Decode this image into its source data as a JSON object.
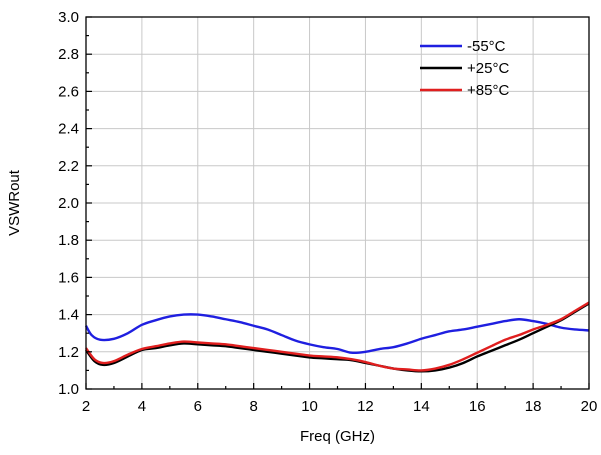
{
  "chart_data": {
    "type": "line",
    "xlabel": "Freq (GHz)",
    "ylabel": "VSWRout",
    "xlim": [
      2,
      20
    ],
    "ylim": [
      1.0,
      3.0
    ],
    "xticks": [
      "2",
      "4",
      "6",
      "8",
      "10",
      "12",
      "14",
      "16",
      "18",
      "20"
    ],
    "yticks": [
      "1.0",
      "1.2",
      "1.4",
      "1.6",
      "1.8",
      "2.0",
      "2.2",
      "2.4",
      "2.6",
      "2.8",
      "3.0"
    ],
    "grid": true,
    "legend_position": "top-right",
    "series": [
      {
        "name": "-55°C",
        "color": "#1f1fe0",
        "x": [
          2.0,
          2.2,
          2.5,
          3.0,
          3.5,
          4.0,
          4.5,
          5.0,
          5.5,
          6.0,
          6.5,
          7.0,
          7.5,
          8.0,
          8.5,
          9.0,
          9.5,
          10.0,
          10.5,
          11.0,
          11.5,
          12.0,
          12.5,
          13.0,
          13.5,
          14.0,
          14.5,
          15.0,
          15.5,
          16.0,
          16.5,
          17.0,
          17.5,
          18.0,
          18.5,
          19.0,
          19.5,
          20.0
        ],
        "y": [
          1.34,
          1.29,
          1.265,
          1.27,
          1.3,
          1.345,
          1.37,
          1.39,
          1.4,
          1.4,
          1.39,
          1.375,
          1.36,
          1.34,
          1.32,
          1.29,
          1.26,
          1.24,
          1.225,
          1.215,
          1.195,
          1.2,
          1.215,
          1.225,
          1.245,
          1.27,
          1.29,
          1.31,
          1.32,
          1.335,
          1.35,
          1.365,
          1.375,
          1.365,
          1.35,
          1.33,
          1.32,
          1.315
        ]
      },
      {
        "name": "+25°C",
        "color": "#000000",
        "x": [
          2.0,
          2.3,
          2.6,
          3.0,
          3.5,
          4.0,
          4.5,
          5.0,
          5.5,
          6.0,
          6.5,
          7.0,
          7.5,
          8.0,
          8.5,
          9.0,
          9.5,
          10.0,
          10.5,
          11.0,
          11.5,
          12.0,
          12.5,
          13.0,
          13.5,
          14.0,
          14.5,
          15.0,
          15.5,
          16.0,
          16.5,
          17.0,
          17.5,
          18.0,
          18.5,
          19.0,
          19.5,
          20.0
        ],
        "y": [
          1.21,
          1.15,
          1.13,
          1.14,
          1.175,
          1.21,
          1.22,
          1.235,
          1.245,
          1.24,
          1.235,
          1.23,
          1.22,
          1.21,
          1.2,
          1.19,
          1.18,
          1.17,
          1.165,
          1.16,
          1.155,
          1.14,
          1.125,
          1.11,
          1.1,
          1.095,
          1.1,
          1.115,
          1.14,
          1.175,
          1.205,
          1.235,
          1.265,
          1.3,
          1.335,
          1.37,
          1.415,
          1.46
        ]
      },
      {
        "name": "+85°C",
        "color": "#e01f1f",
        "x": [
          2.0,
          2.3,
          2.6,
          3.0,
          3.5,
          4.0,
          4.5,
          5.0,
          5.5,
          6.0,
          6.5,
          7.0,
          7.5,
          8.0,
          8.5,
          9.0,
          9.5,
          10.0,
          10.5,
          11.0,
          11.5,
          12.0,
          12.5,
          13.0,
          13.5,
          14.0,
          14.5,
          15.0,
          15.5,
          16.0,
          16.5,
          17.0,
          17.5,
          18.0,
          18.5,
          19.0,
          19.5,
          20.0
        ],
        "y": [
          1.22,
          1.16,
          1.14,
          1.15,
          1.185,
          1.215,
          1.23,
          1.245,
          1.255,
          1.25,
          1.245,
          1.24,
          1.23,
          1.22,
          1.21,
          1.2,
          1.19,
          1.18,
          1.175,
          1.17,
          1.16,
          1.145,
          1.125,
          1.11,
          1.105,
          1.1,
          1.11,
          1.13,
          1.16,
          1.195,
          1.23,
          1.265,
          1.29,
          1.32,
          1.345,
          1.375,
          1.42,
          1.465
        ]
      }
    ]
  }
}
